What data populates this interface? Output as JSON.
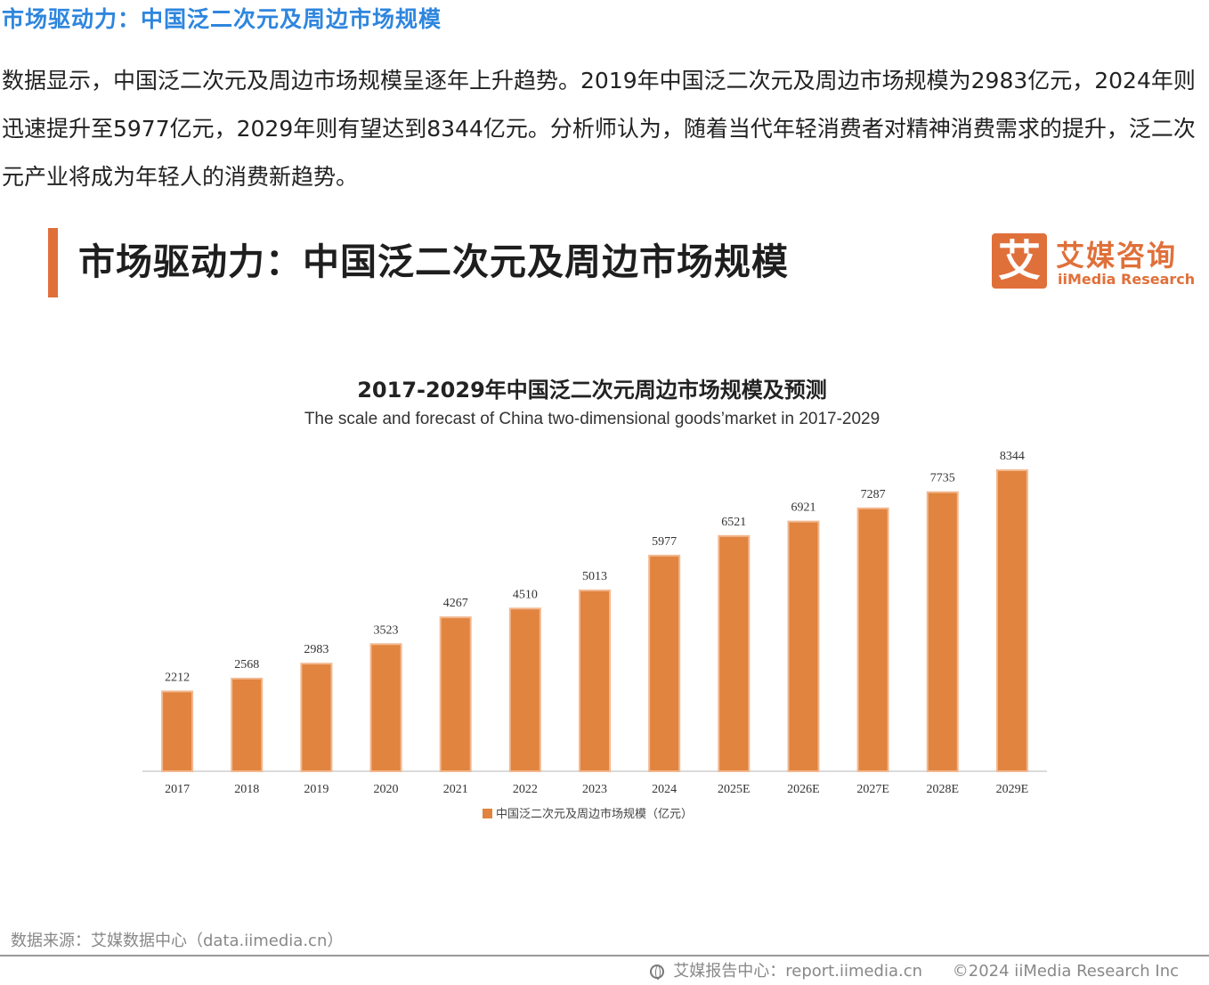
{
  "heading": "市场驱动力：中国泛二次元及周边市场规模",
  "paragraph": "数据显示，中国泛二次元及周边市场规模呈逐年上升趋势。2019年中国泛二次元及周边市场规模为2983亿元，2024年则迅速提升至5977亿元，2029年则有望达到8344亿元。分析师认为，随着当代年轻消费者对精神消费需求的提升，泛二次元产业将成为年轻人的消费新趋势。",
  "card": {
    "title": "市场驱动力：中国泛二次元及周边市场规模",
    "logo_mark": "艾",
    "logo_cn": "艾媒咨询",
    "logo_en": "iiMedia Research",
    "source": "数据来源：艾媒数据中心（data.iimedia.cn）",
    "footer_report": "艾媒报告中心：report.iimedia.cn",
    "footer_copyright": "©2024  iiMedia Research Inc"
  },
  "colors": {
    "accent": "#e0703a",
    "bar": "#e0843f",
    "heading": "#2e86de"
  },
  "chart_data": {
    "type": "bar",
    "title": "2017-2029年中国泛二次元周边市场规模及预测",
    "subtitle": "The scale and forecast of China two-dimensional goods’market in 2017-2029",
    "categories": [
      "2017",
      "2018",
      "2019",
      "2020",
      "2021",
      "2022",
      "2023",
      "2024",
      "2025E",
      "2026E",
      "2027E",
      "2028E",
      "2029E"
    ],
    "series": [
      {
        "name": "中国泛二次元及周边市场规模（亿元）",
        "values": [
          2212,
          2568,
          2983,
          3523,
          4267,
          4510,
          5013,
          5977,
          6521,
          6921,
          7287,
          7735,
          8344
        ]
      }
    ],
    "xlabel": "",
    "ylabel": "",
    "ylim": [
      0,
      8344
    ],
    "grid": false,
    "legend": "bottom"
  }
}
